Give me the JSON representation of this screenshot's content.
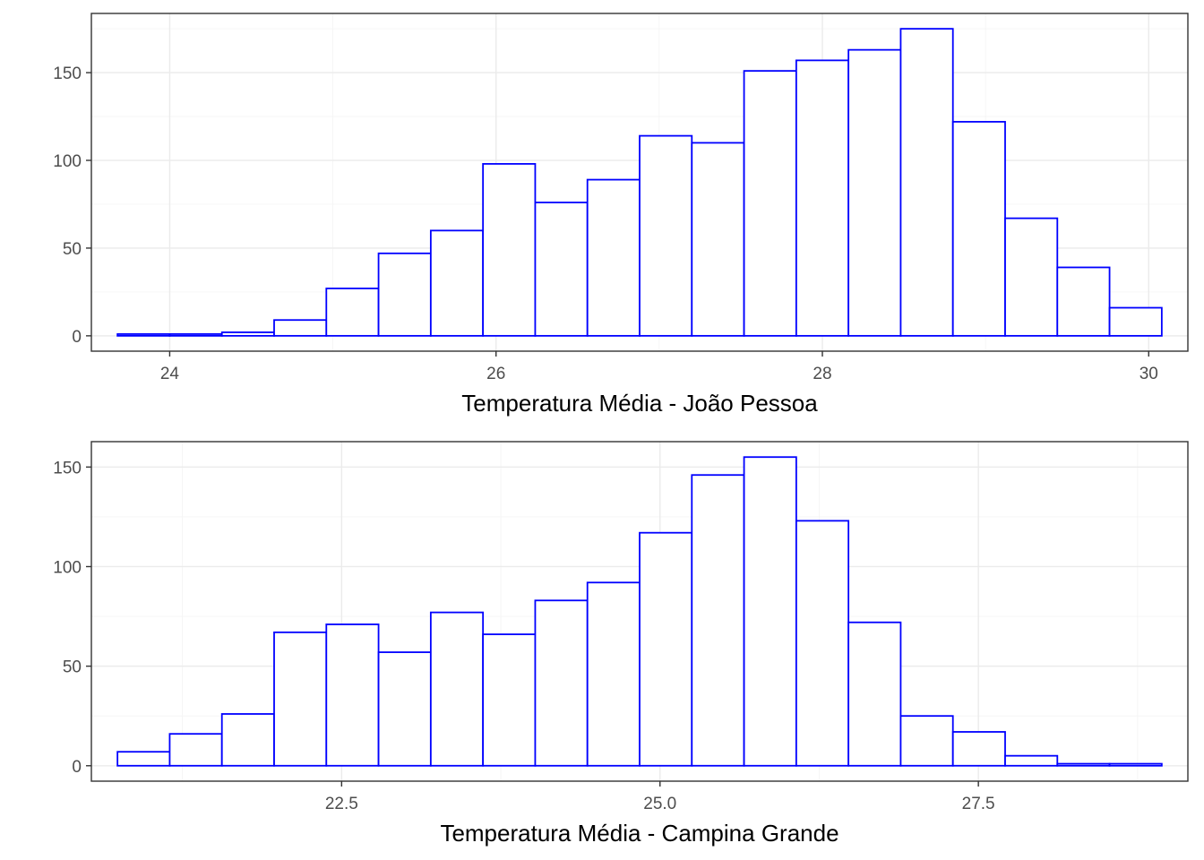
{
  "chart_data": [
    {
      "type": "bar",
      "subtype": "histogram",
      "title": "",
      "xlabel": "Temperatura Média - João Pessoa",
      "ylabel": "",
      "bin_width": 0.32,
      "bin_starts": [
        23.68,
        24.0,
        24.32,
        24.64,
        24.96,
        25.28,
        25.6,
        25.92,
        26.24,
        26.56,
        26.88,
        27.2,
        27.52,
        27.84,
        28.16,
        28.48,
        28.8,
        29.12,
        29.44,
        29.76
      ],
      "values": [
        1,
        1,
        2,
        9,
        27,
        47,
        60,
        98,
        76,
        89,
        114,
        110,
        151,
        157,
        163,
        175,
        122,
        67,
        39,
        16
      ],
      "xlim": [
        23.52,
        30.24
      ],
      "ylim": [
        -8.75,
        183.75
      ],
      "x_ticks": [
        24,
        26,
        28,
        30
      ],
      "x_tick_labels": [
        "24",
        "26",
        "28",
        "30"
      ],
      "y_ticks": [
        0,
        50,
        100,
        150
      ],
      "y_tick_labels": [
        "0",
        "50",
        "100",
        "150"
      ],
      "colors": {
        "bar_outline": "#0000ff",
        "bar_fill": "#ffffff"
      }
    },
    {
      "type": "bar",
      "subtype": "histogram",
      "title": "",
      "xlabel": "Temperatura Média - Campina Grande",
      "ylabel": "",
      "bin_width": 0.41,
      "bin_starts": [
        20.74,
        21.15,
        21.56,
        21.97,
        22.38,
        22.79,
        23.2,
        23.61,
        24.02,
        24.43,
        24.84,
        25.25,
        25.66,
        26.07,
        26.48,
        26.89,
        27.3,
        27.71,
        28.12,
        28.53
      ],
      "values": [
        7,
        16,
        26,
        67,
        71,
        57,
        77,
        66,
        83,
        92,
        117,
        146,
        155,
        123,
        72,
        25,
        17,
        5,
        1,
        1
      ],
      "xlim": [
        20.535,
        29.145
      ],
      "ylim": [
        -7.75,
        162.75
      ],
      "x_ticks": [
        22.5,
        25.0,
        27.5
      ],
      "x_tick_labels": [
        "22.5",
        "25.0",
        "27.5"
      ],
      "y_ticks": [
        0,
        50,
        100,
        150
      ],
      "y_tick_labels": [
        "0",
        "50",
        "100",
        "150"
      ],
      "colors": {
        "bar_outline": "#0000ff",
        "bar_fill": "#ffffff"
      }
    }
  ]
}
